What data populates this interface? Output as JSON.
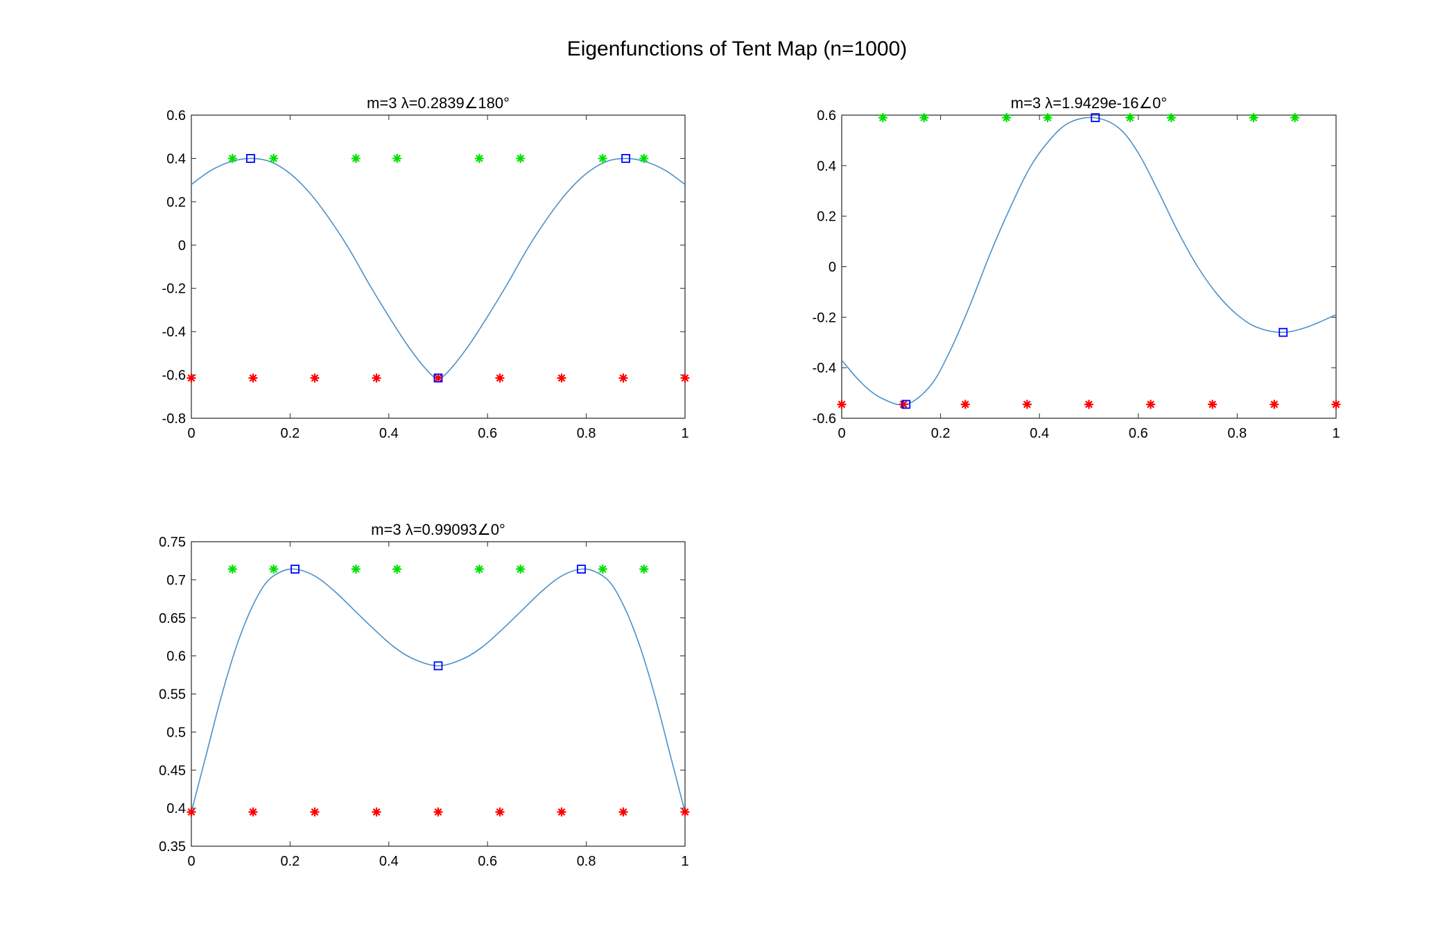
{
  "figure": {
    "title": "Eigenfunctions of Tent Map (n=1000)",
    "colors": {
      "curve": "#4a90c8",
      "blue_marker": "#0000ff",
      "green_marker": "#00e000",
      "red_marker": "#ff0000"
    }
  },
  "chart_data": [
    {
      "type": "line",
      "title": "m=3 λ=0.2839∠180°",
      "xlim": [
        0,
        1
      ],
      "ylim": [
        -0.8,
        0.6
      ],
      "xticks": [
        0,
        0.2,
        0.4,
        0.6,
        0.8,
        1
      ],
      "xtick_labels": [
        "0",
        "0.2",
        "0.4",
        "0.6",
        "0.8",
        "1"
      ],
      "yticks": [
        -0.8,
        -0.6,
        -0.4,
        -0.2,
        0,
        0.2,
        0.4,
        0.6
      ],
      "ytick_labels": [
        "-0.8",
        "-0.6",
        "-0.4",
        "-0.2",
        "0",
        "0.2",
        "0.4",
        "0.6"
      ],
      "curve": {
        "x": [
          0,
          0.04,
          0.08,
          0.12,
          0.16,
          0.2,
          0.24,
          0.28,
          0.32,
          0.36,
          0.4,
          0.44,
          0.48,
          0.5,
          0.52,
          0.56,
          0.6,
          0.64,
          0.68,
          0.72,
          0.76,
          0.8,
          0.84,
          0.88,
          0.92,
          0.96,
          1
        ],
        "y": [
          0.28,
          0.345,
          0.385,
          0.4,
          0.385,
          0.33,
          0.24,
          0.12,
          -0.02,
          -0.18,
          -0.33,
          -0.47,
          -0.585,
          -0.614,
          -0.585,
          -0.47,
          -0.33,
          -0.18,
          -0.02,
          0.12,
          0.24,
          0.33,
          0.385,
          0.4,
          0.385,
          0.345,
          0.28
        ]
      },
      "blue_squares": {
        "x": [
          0.12,
          0.5,
          0.88
        ],
        "y": [
          0.4,
          -0.614,
          0.4
        ]
      },
      "green_stars": {
        "x": [
          0.0833,
          0.1667,
          0.3333,
          0.4167,
          0.5833,
          0.6667,
          0.8333,
          0.9167
        ],
        "y": [
          0.4,
          0.4,
          0.4,
          0.4,
          0.4,
          0.4,
          0.4,
          0.4
        ]
      },
      "red_stars": {
        "x": [
          0,
          0.125,
          0.25,
          0.375,
          0.5,
          0.625,
          0.75,
          0.875,
          1
        ],
        "y": [
          -0.614,
          -0.614,
          -0.614,
          -0.614,
          -0.614,
          -0.614,
          -0.614,
          -0.614,
          -0.614
        ]
      }
    },
    {
      "type": "line",
      "title": "m=3 λ=1.9429e-16∠0°",
      "xlim": [
        0,
        1
      ],
      "ylim": [
        -0.6,
        0.6
      ],
      "xticks": [
        0,
        0.2,
        0.4,
        0.6,
        0.8,
        1
      ],
      "xtick_labels": [
        "0",
        "0.2",
        "0.4",
        "0.6",
        "0.8",
        "1"
      ],
      "yticks": [
        -0.6,
        -0.4,
        -0.2,
        0,
        0.2,
        0.4,
        0.6
      ],
      "ytick_labels": [
        "-0.6",
        "-0.4",
        "-0.2",
        "0",
        "0.2",
        "0.4",
        "0.6"
      ],
      "curve": {
        "x": [
          0,
          0.04,
          0.08,
          0.13,
          0.18,
          0.22,
          0.26,
          0.3,
          0.34,
          0.38,
          0.42,
          0.46,
          0.51,
          0.56,
          0.6,
          0.64,
          0.68,
          0.72,
          0.76,
          0.8,
          0.84,
          0.89,
          0.94,
          1
        ],
        "y": [
          -0.37,
          -0.46,
          -0.52,
          -0.545,
          -0.47,
          -0.33,
          -0.15,
          0.05,
          0.23,
          0.39,
          0.5,
          0.57,
          0.59,
          0.55,
          0.45,
          0.3,
          0.14,
          0.0,
          -0.11,
          -0.19,
          -0.24,
          -0.26,
          -0.24,
          -0.19
        ]
      },
      "blue_squares": {
        "x": [
          0.13,
          0.513,
          0.893
        ],
        "y": [
          -0.545,
          0.59,
          -0.26
        ]
      },
      "green_stars": {
        "x": [
          0.0833,
          0.1667,
          0.3333,
          0.4167,
          0.5833,
          0.6667,
          0.8333,
          0.9167
        ],
        "y": [
          0.59,
          0.59,
          0.59,
          0.59,
          0.59,
          0.59,
          0.59,
          0.59
        ]
      },
      "red_stars": {
        "x": [
          0,
          0.125,
          0.25,
          0.375,
          0.5,
          0.625,
          0.75,
          0.875,
          1
        ],
        "y": [
          -0.545,
          -0.545,
          -0.545,
          -0.545,
          -0.545,
          -0.545,
          -0.545,
          -0.545,
          -0.545
        ]
      }
    },
    {
      "type": "line",
      "title": "m=3 λ=0.99093∠0°",
      "xlim": [
        0,
        1
      ],
      "ylim": [
        0.35,
        0.75
      ],
      "xticks": [
        0,
        0.2,
        0.4,
        0.6,
        0.8,
        1
      ],
      "xtick_labels": [
        "0",
        "0.2",
        "0.4",
        "0.6",
        "0.8",
        "1"
      ],
      "yticks": [
        0.35,
        0.4,
        0.45,
        0.5,
        0.55,
        0.6,
        0.65,
        0.7,
        0.75
      ],
      "ytick_labels": [
        "0.35",
        "0.4",
        "0.45",
        "0.5",
        "0.55",
        "0.6",
        "0.65",
        "0.7",
        "0.75"
      ],
      "curve": {
        "x": [
          0,
          0.03,
          0.06,
          0.09,
          0.12,
          0.15,
          0.18,
          0.21,
          0.25,
          0.29,
          0.33,
          0.37,
          0.41,
          0.45,
          0.5,
          0.55,
          0.59,
          0.63,
          0.67,
          0.71,
          0.75,
          0.79,
          0.82,
          0.85,
          0.88,
          0.91,
          0.94,
          0.97,
          1
        ],
        "y": [
          0.395,
          0.47,
          0.545,
          0.61,
          0.66,
          0.695,
          0.71,
          0.714,
          0.705,
          0.685,
          0.66,
          0.635,
          0.612,
          0.596,
          0.587,
          0.596,
          0.612,
          0.635,
          0.66,
          0.685,
          0.705,
          0.714,
          0.71,
          0.695,
          0.66,
          0.61,
          0.545,
          0.47,
          0.395
        ]
      },
      "blue_squares": {
        "x": [
          0.21,
          0.5,
          0.79
        ],
        "y": [
          0.714,
          0.587,
          0.714
        ]
      },
      "green_stars": {
        "x": [
          0.0833,
          0.1667,
          0.3333,
          0.4167,
          0.5833,
          0.6667,
          0.8333,
          0.9167
        ],
        "y": [
          0.714,
          0.714,
          0.714,
          0.714,
          0.714,
          0.714,
          0.714,
          0.714
        ]
      },
      "red_stars": {
        "x": [
          0,
          0.125,
          0.25,
          0.375,
          0.5,
          0.625,
          0.75,
          0.875,
          1
        ],
        "y": [
          0.395,
          0.395,
          0.395,
          0.395,
          0.395,
          0.395,
          0.395,
          0.395,
          0.395
        ]
      }
    }
  ]
}
